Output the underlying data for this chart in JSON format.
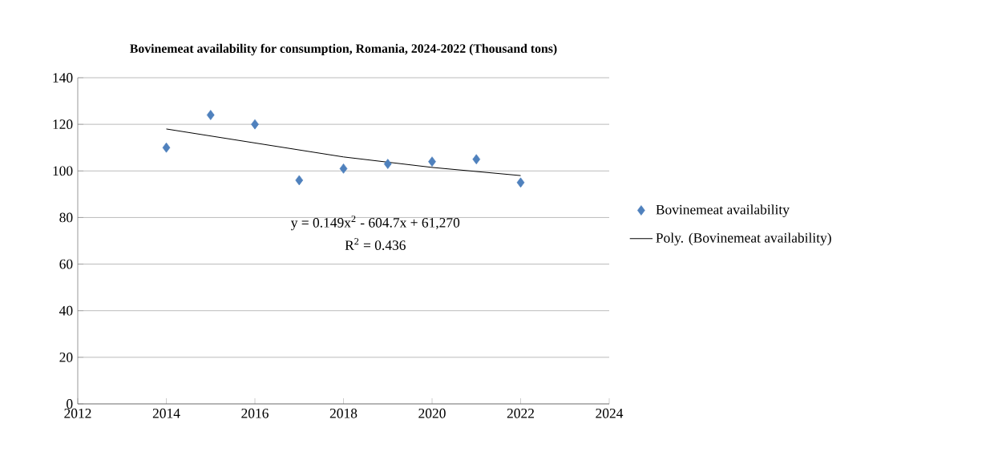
{
  "chart_data": {
    "type": "scatter",
    "title": "Bovinemeat availability for consumption, Romania, 2024-2022 (Thousand tons)",
    "series": [
      {
        "name": "Bovinemeat availability",
        "marker": "diamond",
        "color": "#4f81bd",
        "x": [
          2014,
          2015,
          2016,
          2017,
          2018,
          2019,
          2020,
          2021,
          2022
        ],
        "values": [
          110,
          124,
          120,
          96,
          101,
          103,
          104,
          105,
          95
        ]
      },
      {
        "name": "Poly. (Bovinemeat availability)",
        "type": "line",
        "color": "#000000",
        "x": [
          2014,
          2016,
          2018,
          2020,
          2022
        ],
        "values": [
          118,
          112,
          106,
          101.5,
          98
        ]
      }
    ],
    "annotations": [
      "y = 0.149x$^{2}$ - 604.7x + 61,270",
      "R$^{2}$ = 0.436"
    ],
    "xlim": [
      2012,
      2024
    ],
    "xticks": [
      2012,
      2014,
      2016,
      2018,
      2020,
      2022,
      2024
    ],
    "ylim": [
      0,
      140
    ],
    "yticks": [
      0,
      20,
      40,
      60,
      80,
      100,
      120,
      140
    ],
    "grid": "y",
    "legend": "right"
  }
}
